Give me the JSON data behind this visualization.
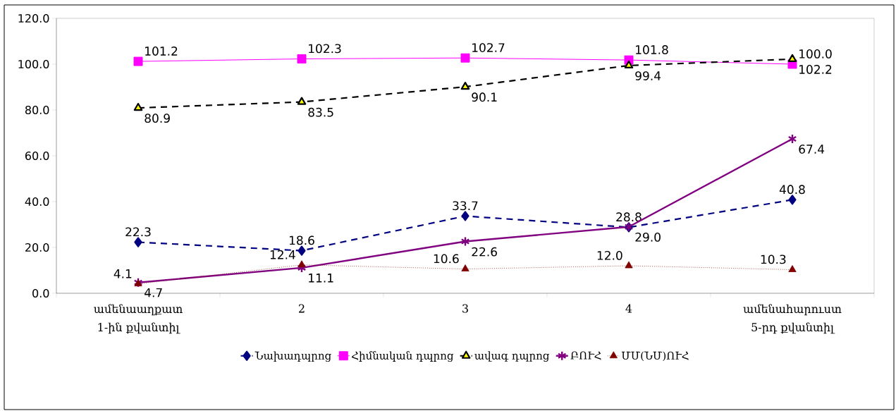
{
  "chart_data": {
    "type": "line",
    "categories": [
      "ամենաաղքատ 1-ին քվանտիլ",
      "2",
      "3",
      "4",
      "ամենահարուստ 5-րդ քվանտիլ"
    ],
    "series": [
      {
        "name": "Նախադպրոց",
        "color": "#000080",
        "marker": "diamond",
        "line_style": "dashed",
        "values": [
          22.3,
          18.6,
          33.7,
          28.8,
          40.8
        ],
        "value_labels": [
          "22.3",
          "18.6",
          "33.7",
          "28.8",
          "40.8"
        ]
      },
      {
        "name": "Հիմնական դպրոց",
        "color": "#ff00ff",
        "marker": "square",
        "line_style": "solid",
        "values": [
          101.2,
          102.3,
          102.7,
          101.8,
          100.0
        ],
        "value_labels": [
          "101.2",
          "102.3",
          "102.7",
          "101.8",
          "100.0"
        ]
      },
      {
        "name": "ավագ դպրոց",
        "color": "#000000",
        "colors": [
          "#ffff00",
          "#ffff00",
          "#ffff00",
          "#ffff00",
          "#ffff00"
        ],
        "marker": "triangle",
        "line_style": "dashed",
        "values": [
          80.9,
          83.5,
          90.1,
          99.4,
          102.2
        ],
        "value_labels": [
          "80.9",
          "83.5",
          "90.1",
          "99.4",
          "102.2"
        ]
      },
      {
        "name": "ԲՈՒՀ",
        "color": "#800080",
        "marker": "cross",
        "line_style": "solid",
        "values": [
          4.7,
          11.1,
          22.6,
          29.0,
          67.4
        ],
        "value_labels": [
          "4.7",
          "11.1",
          "22.6",
          "29.0",
          "67.4"
        ]
      },
      {
        "name": "ՄՄ(ՆՄ)ՈՒՀ",
        "color": "#800000",
        "marker": "triangle",
        "line_style": "dotted",
        "values": [
          4.1,
          12.4,
          10.6,
          12.0,
          10.3
        ],
        "value_labels": [
          "4.1",
          "12.4",
          "10.6",
          "12.0",
          "10.3"
        ]
      }
    ],
    "ylim": [
      0,
      120
    ],
    "yticks": [
      {
        "value": 0,
        "label": "0.0"
      },
      {
        "value": 20,
        "label": "20.0"
      },
      {
        "value": 40,
        "label": "40.0"
      },
      {
        "value": 60,
        "label": "60.0"
      },
      {
        "value": 80,
        "label": "80.0"
      },
      {
        "value": 100,
        "label": "100.0"
      },
      {
        "value": 120,
        "label": "120.0"
      }
    ],
    "grid": false,
    "legend": "bottom"
  }
}
